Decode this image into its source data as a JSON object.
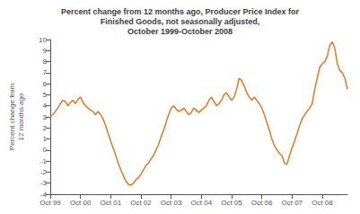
{
  "chart_data": {
    "type": "line",
    "title": "Percent change from 12 months ago, Producer Price Index for\nFinished Goods, not seasonally adjusted,\nOctober 1999-October 2008",
    "ylabel": "Percent change from\n12 months ago",
    "color": "#E87722",
    "grid": false,
    "ylim": [
      -4,
      10
    ],
    "yticks": [
      -4,
      -3,
      -2,
      -1,
      0,
      1,
      2,
      3,
      4,
      5,
      6,
      7,
      8,
      9,
      10
    ],
    "categories": [
      "Oct 99",
      null,
      null,
      null,
      null,
      null,
      null,
      null,
      null,
      null,
      null,
      null,
      "Oct 00",
      null,
      null,
      null,
      null,
      null,
      null,
      null,
      null,
      null,
      null,
      null,
      "Oct 01",
      null,
      null,
      null,
      null,
      null,
      null,
      null,
      null,
      null,
      null,
      null,
      "Oct 02",
      null,
      null,
      null,
      null,
      null,
      null,
      null,
      null,
      null,
      null,
      null,
      "Oct 03",
      null,
      null,
      null,
      null,
      null,
      null,
      null,
      null,
      null,
      null,
      null,
      "Oct 04",
      null,
      null,
      null,
      null,
      null,
      null,
      null,
      null,
      null,
      null,
      null,
      "Oct 05",
      null,
      null,
      null,
      null,
      null,
      null,
      null,
      null,
      null,
      null,
      null,
      "Oct 06",
      null,
      null,
      null,
      null,
      null,
      null,
      null,
      null,
      null,
      null,
      null,
      "Oct 07",
      null,
      null,
      null,
      null,
      null,
      null,
      null,
      null,
      null,
      null,
      null,
      "Oct 08",
      null,
      null,
      null,
      null,
      null,
      null,
      null,
      null,
      null,
      null
    ],
    "values": [
      3.0,
      3.2,
      3.5,
      3.8,
      4.2,
      4.5,
      4.4,
      4.0,
      4.3,
      4.5,
      4.2,
      4.6,
      4.8,
      4.3,
      4.0,
      3.8,
      3.6,
      3.5,
      3.2,
      3.5,
      3.2,
      2.8,
      2.2,
      1.5,
      0.8,
      0.2,
      -0.5,
      -1.2,
      -1.8,
      -2.3,
      -2.8,
      -3.1,
      -3.2,
      -3.0,
      -2.7,
      -2.5,
      -2.2,
      -1.8,
      -1.4,
      -1.2,
      -0.8,
      -0.5,
      0.0,
      0.5,
      1.2,
      1.8,
      2.5,
      3.2,
      3.8,
      4.0,
      3.7,
      3.5,
      3.6,
      3.8,
      3.5,
      3.2,
      3.4,
      3.8,
      3.6,
      3.4,
      3.6,
      3.8,
      4.0,
      4.5,
      4.8,
      4.4,
      4.0,
      4.2,
      4.5,
      5.0,
      5.2,
      4.8,
      4.5,
      4.8,
      5.5,
      6.5,
      6.3,
      5.8,
      5.2,
      4.8,
      4.5,
      4.8,
      4.5,
      4.2,
      3.8,
      3.2,
      2.5,
      1.8,
      1.0,
      0.4,
      0.0,
      -0.3,
      -0.5,
      -1.2,
      -1.3,
      -0.5,
      0.2,
      0.8,
      1.5,
      2.2,
      2.8,
      3.2,
      3.5,
      3.8,
      4.2,
      5.5,
      6.5,
      7.5,
      7.8,
      8.0,
      8.5,
      9.5,
      9.8,
      9.2,
      7.8,
      7.2,
      7.0,
      6.5,
      5.5
    ]
  }
}
